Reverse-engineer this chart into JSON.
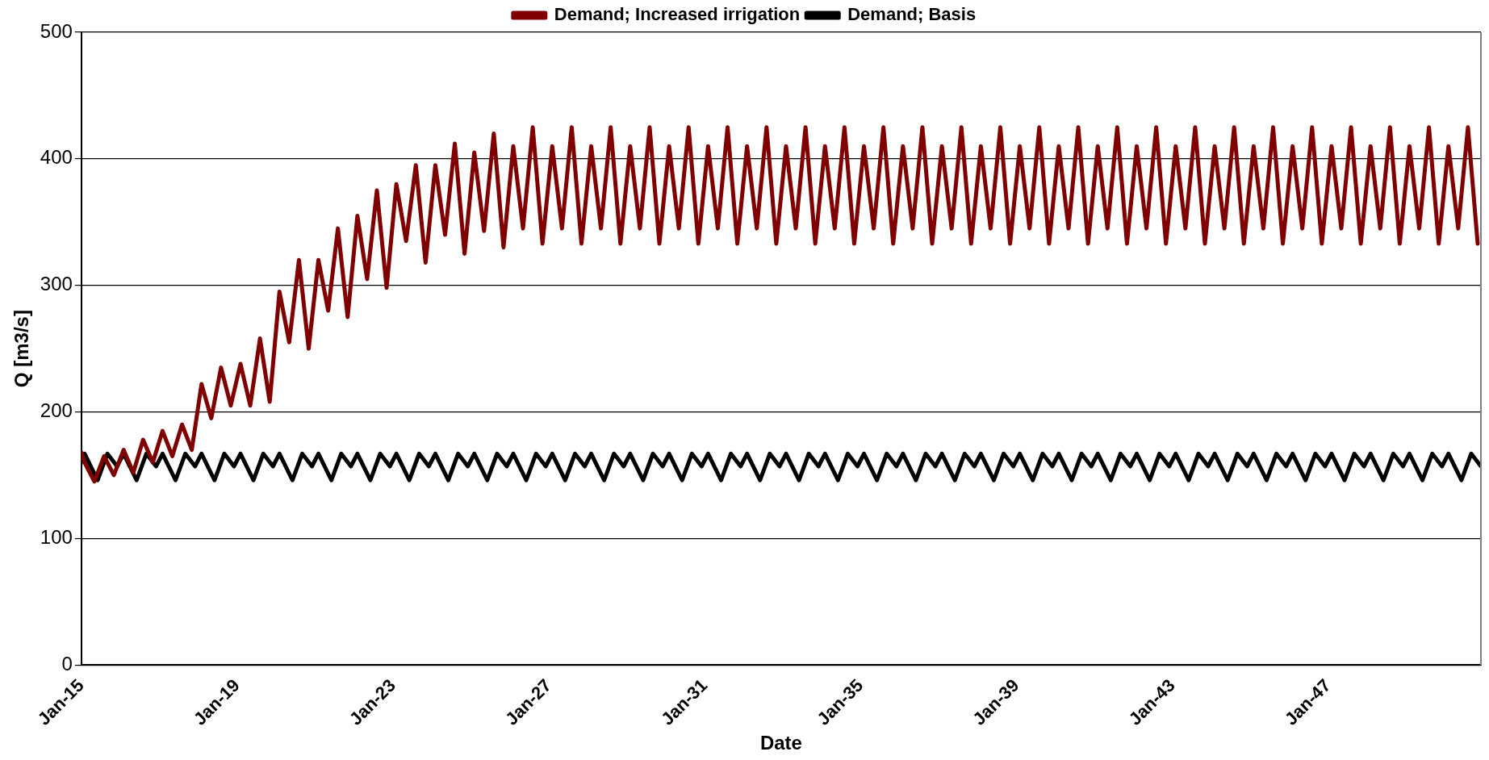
{
  "chart_data": {
    "type": "line",
    "xlabel": "Date",
    "ylabel": "Q [m3/s]",
    "xlim": [
      "2015-01",
      "2050-12"
    ],
    "xticks": [
      {
        "value": "2015-01",
        "label": "Jan-15"
      },
      {
        "value": "2019-01",
        "label": "Jan-19"
      },
      {
        "value": "2023-01",
        "label": "Jan-23"
      },
      {
        "value": "2027-01",
        "label": "Jan-27"
      },
      {
        "value": "2031-01",
        "label": "Jan-31"
      },
      {
        "value": "2035-01",
        "label": "Jan-35"
      },
      {
        "value": "2039-01",
        "label": "Jan-39"
      },
      {
        "value": "2043-01",
        "label": "Jan-43"
      },
      {
        "value": "2047-01",
        "label": "Jan-47"
      }
    ],
    "ylim": [
      0,
      500
    ],
    "yticks": [
      0,
      100,
      200,
      300,
      400,
      500
    ],
    "grid": "y",
    "legend": "top",
    "marker": "none",
    "line_style": "solid",
    "series": [
      {
        "name": "Demand; Basis",
        "color": "#000000",
        "x": [
          "2015-01",
          "2015-02",
          "2015-06",
          "2015-09",
          "2015-12",
          "2016-02",
          "2016-06",
          "2016-09",
          "2016-12",
          "2017-02",
          "2017-06",
          "2017-09",
          "2017-12",
          "2018-02",
          "2018-06",
          "2018-09",
          "2018-12",
          "2019-02",
          "2019-06",
          "2019-09",
          "2019-12",
          "2020-02",
          "2020-06",
          "2020-09",
          "2020-12",
          "2021-02",
          "2021-06",
          "2021-09",
          "2021-12",
          "2022-02",
          "2022-06",
          "2022-09",
          "2022-12",
          "2023-02",
          "2023-06",
          "2023-09",
          "2023-12",
          "2024-02",
          "2024-06",
          "2024-09",
          "2024-12",
          "2025-02",
          "2025-06",
          "2025-09",
          "2025-12",
          "2026-02",
          "2026-06",
          "2026-09",
          "2026-12",
          "2027-02",
          "2027-06",
          "2027-09",
          "2027-12",
          "2028-02",
          "2028-06",
          "2028-09",
          "2028-12",
          "2029-02",
          "2029-06",
          "2029-09",
          "2029-12",
          "2030-02",
          "2030-06",
          "2030-09",
          "2030-12",
          "2031-02",
          "2031-06",
          "2031-09",
          "2031-12",
          "2032-02",
          "2032-06",
          "2032-09",
          "2032-12",
          "2033-02",
          "2033-06",
          "2033-09",
          "2033-12",
          "2034-02",
          "2034-06",
          "2034-09",
          "2034-12",
          "2035-02",
          "2035-06",
          "2035-09",
          "2035-12",
          "2036-02",
          "2036-06",
          "2036-09",
          "2036-12",
          "2037-02",
          "2037-06",
          "2037-09",
          "2037-12",
          "2038-02",
          "2038-06",
          "2038-09",
          "2038-12",
          "2039-02",
          "2039-06",
          "2039-09",
          "2039-12",
          "2040-02",
          "2040-06",
          "2040-09",
          "2040-12",
          "2041-02",
          "2041-06",
          "2041-09",
          "2041-12",
          "2042-02",
          "2042-06",
          "2042-09",
          "2042-12",
          "2043-02",
          "2043-06",
          "2043-09",
          "2043-12",
          "2044-02",
          "2044-06",
          "2044-09",
          "2044-12",
          "2045-02",
          "2045-06",
          "2045-09",
          "2045-12",
          "2046-02",
          "2046-06",
          "2046-09",
          "2046-12",
          "2047-02",
          "2047-06",
          "2047-09",
          "2047-12",
          "2048-02",
          "2048-06",
          "2048-09",
          "2048-12",
          "2049-02",
          "2049-06",
          "2049-09",
          "2049-12",
          "2050-02",
          "2050-06",
          "2050-09",
          "2050-12"
        ],
        "values": [
          160,
          167,
          146,
          167,
          157,
          167,
          146,
          167,
          157,
          167,
          146,
          167,
          157,
          167,
          146,
          167,
          157,
          167,
          146,
          167,
          157,
          167,
          146,
          167,
          157,
          167,
          146,
          167,
          157,
          167,
          146,
          167,
          157,
          167,
          146,
          167,
          157,
          167,
          146,
          167,
          157,
          167,
          146,
          167,
          157,
          167,
          146,
          167,
          157,
          167,
          146,
          167,
          157,
          167,
          146,
          167,
          157,
          167,
          146,
          167,
          157,
          167,
          146,
          167,
          157,
          167,
          146,
          167,
          157,
          167,
          146,
          167,
          157,
          167,
          146,
          167,
          157,
          167,
          146,
          167,
          157,
          167,
          146,
          167,
          157,
          167,
          146,
          167,
          157,
          167,
          146,
          167,
          157,
          167,
          146,
          167,
          157,
          167,
          146,
          167,
          157,
          167,
          146,
          167,
          157,
          167,
          146,
          167,
          157,
          167,
          146,
          167,
          157,
          167,
          146,
          167,
          157,
          167,
          146,
          167,
          157,
          167,
          146,
          167,
          157,
          167,
          146,
          167,
          157,
          167,
          146,
          167,
          157,
          167,
          146,
          167,
          157,
          167,
          146,
          167,
          157,
          167,
          146,
          167,
          157
        ]
      },
      {
        "name": "Demand; Increased irrigation",
        "color": "#800000",
        "x": [
          "2015-01",
          "2015-02",
          "2015-05",
          "2015-08",
          "2015-11",
          "2016-02",
          "2016-05",
          "2016-08",
          "2016-11",
          "2017-02",
          "2017-05",
          "2017-08",
          "2017-11",
          "2018-02",
          "2018-05",
          "2018-08",
          "2018-11",
          "2019-02",
          "2019-05",
          "2019-08",
          "2019-11",
          "2020-02",
          "2020-05",
          "2020-08",
          "2020-11",
          "2021-02",
          "2021-05",
          "2021-08",
          "2021-11",
          "2022-02",
          "2022-05",
          "2022-08",
          "2022-11",
          "2023-02",
          "2023-05",
          "2023-08",
          "2023-11",
          "2024-02",
          "2024-05",
          "2024-08",
          "2024-11",
          "2025-02",
          "2025-05",
          "2025-08",
          "2025-11",
          "2026-02",
          "2026-05",
          "2026-08",
          "2026-11",
          "2027-02",
          "2027-05",
          "2027-08",
          "2027-11",
          "2028-02",
          "2028-05",
          "2028-08",
          "2028-11",
          "2029-02",
          "2029-05",
          "2029-08",
          "2029-11",
          "2030-02",
          "2030-05",
          "2030-08",
          "2030-11",
          "2031-02",
          "2031-05",
          "2031-08",
          "2031-11",
          "2032-02",
          "2032-05",
          "2032-08",
          "2032-11",
          "2033-02",
          "2033-05",
          "2033-08",
          "2033-11",
          "2034-02",
          "2034-05",
          "2034-08",
          "2034-11",
          "2035-02",
          "2035-05",
          "2035-08",
          "2035-11",
          "2036-02",
          "2036-05",
          "2036-08",
          "2036-11",
          "2037-02",
          "2037-05",
          "2037-08",
          "2037-11",
          "2038-02",
          "2038-05",
          "2038-08",
          "2038-11",
          "2039-02",
          "2039-05",
          "2039-08",
          "2039-11",
          "2040-02",
          "2040-05",
          "2040-08",
          "2040-11",
          "2041-02",
          "2041-05",
          "2041-08",
          "2041-11",
          "2042-02",
          "2042-05",
          "2042-08",
          "2042-11",
          "2043-02",
          "2043-05",
          "2043-08",
          "2043-11",
          "2044-02",
          "2044-05",
          "2044-08",
          "2044-11",
          "2045-02",
          "2045-05",
          "2045-08",
          "2045-11",
          "2046-02",
          "2046-05",
          "2046-08",
          "2046-11",
          "2047-02",
          "2047-05",
          "2047-08",
          "2047-11",
          "2048-02",
          "2048-05",
          "2048-08",
          "2048-11",
          "2049-02",
          "2049-05",
          "2049-08",
          "2049-11",
          "2050-02",
          "2050-05",
          "2050-08",
          "2050-11"
        ],
        "values": [
          168,
          160,
          145,
          165,
          150,
          170,
          152,
          178,
          160,
          185,
          165,
          190,
          170,
          222,
          195,
          235,
          205,
          238,
          205,
          258,
          208,
          295,
          255,
          320,
          250,
          320,
          280,
          345,
          275,
          355,
          305,
          375,
          298,
          380,
          335,
          395,
          318,
          395,
          340,
          412,
          325,
          405,
          343,
          420,
          330,
          410,
          345,
          425,
          333,
          410,
          345,
          425,
          333,
          410,
          345,
          425,
          333,
          410,
          345,
          425,
          333,
          410,
          345,
          425,
          333,
          410,
          345,
          425,
          333,
          410,
          345,
          425,
          333,
          410,
          345,
          425,
          333,
          410,
          345,
          425,
          333,
          410,
          345,
          425,
          333,
          410,
          345,
          425,
          333,
          410,
          345,
          425,
          333,
          410,
          345,
          425,
          333,
          410,
          345,
          425,
          333,
          410,
          345,
          425,
          333,
          410,
          345,
          425,
          333,
          410,
          345,
          425,
          333,
          410,
          345,
          425,
          333,
          410,
          345,
          425,
          333,
          410,
          345,
          425,
          333,
          410,
          345,
          425,
          333,
          410,
          345,
          425,
          333,
          410,
          345,
          425,
          333,
          410,
          345,
          425,
          333,
          410,
          345,
          425,
          333
        ]
      }
    ]
  }
}
